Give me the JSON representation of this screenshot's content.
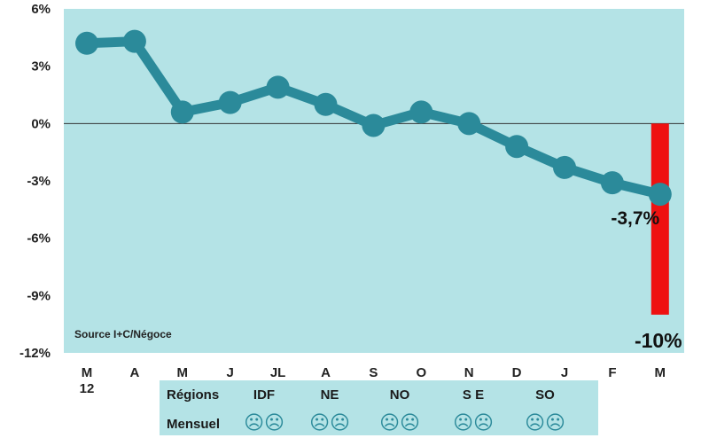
{
  "chart_data": {
    "type": "line",
    "categories": [
      "M\n12",
      "A",
      "M",
      "J",
      "JL",
      "A",
      "S",
      "O",
      "N",
      "D",
      "J",
      "F",
      "M"
    ],
    "series": [
      {
        "values": [
          4.2,
          4.3,
          0.6,
          1.1,
          1.9,
          1.0,
          -0.1,
          0.6,
          0.0,
          -1.2,
          -2.3,
          -3.1,
          -3.7
        ]
      }
    ],
    "bars": [
      {
        "category_index": 12,
        "value": -10
      }
    ],
    "yticks": [
      "6%",
      "3%",
      "0%",
      "-3%",
      "-6%",
      "-9%",
      "-12%"
    ],
    "ytick_values": [
      6,
      3,
      0,
      -3,
      -6,
      -9,
      -12
    ],
    "ylim": [
      -12,
      6
    ],
    "data_labels": [
      {
        "text": "-3,7%",
        "value": -3.7
      },
      {
        "text": "-10%",
        "value": -10
      }
    ],
    "annotation": "Source I+C/Négoce",
    "grid": false,
    "zero_line": true
  },
  "regions_table": {
    "row_labels": [
      "Régions",
      "Mensuel"
    ],
    "regions": [
      "IDF",
      "NE",
      "NO",
      "S E",
      "SO"
    ],
    "face": "☹☹"
  },
  "colors": {
    "plot_bg": "#b4e3e6",
    "line": "#2b8a9a",
    "bar": "#ee1111",
    "table_bg": "#b4e3e6",
    "zero_line": "#333333",
    "text": "#222222"
  }
}
